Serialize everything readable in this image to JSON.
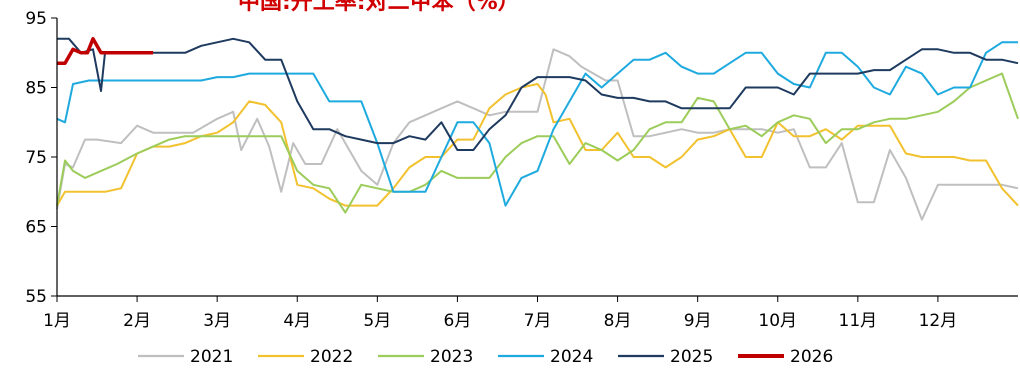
{
  "chart_data": {
    "type": "line",
    "title": "中国:开工率:对二甲苯（%）",
    "ylim": [
      55,
      95
    ],
    "yticks": [
      55,
      65,
      75,
      85,
      95
    ],
    "xlim": [
      0,
      12
    ],
    "xticks": [
      "1月",
      "2月",
      "3月",
      "4月",
      "5月",
      "6月",
      "7月",
      "8月",
      "9月",
      "10月",
      "11月",
      "12月"
    ],
    "legend_position": "bottom",
    "grid": false,
    "series": [
      {
        "name": "2021",
        "color": "#bfbfbf",
        "x": [
          0.0,
          0.1,
          0.2,
          0.35,
          0.5,
          0.8,
          1.0,
          1.2,
          1.35,
          1.5,
          1.7,
          2.0,
          2.2,
          2.3,
          2.5,
          2.65,
          2.8,
          2.95,
          3.1,
          3.3,
          3.5,
          3.7,
          3.8,
          4.0,
          4.2,
          4.4,
          4.6,
          4.8,
          5.0,
          5.2,
          5.4,
          5.6,
          5.8,
          6.0,
          6.2,
          6.4,
          6.55,
          6.7,
          6.85,
          7.0,
          7.2,
          7.4,
          7.6,
          7.8,
          8.0,
          8.2,
          8.4,
          8.6,
          8.8,
          9.0,
          9.2,
          9.4,
          9.6,
          9.8,
          10.0,
          10.2,
          10.4,
          10.6,
          10.8,
          11.0,
          11.2,
          11.4,
          11.6,
          11.8,
          12.0
        ],
        "values": [
          67.5,
          74,
          73.5,
          77.5,
          77.5,
          77,
          79.5,
          78.5,
          78.5,
          78.5,
          78.5,
          80.5,
          81.5,
          76,
          80.5,
          76.5,
          70,
          77,
          74,
          74,
          79,
          75,
          73,
          71,
          77,
          80,
          81,
          82,
          83,
          82,
          81,
          81.5,
          81.5,
          81.5,
          90.5,
          89.5,
          88,
          87,
          86,
          86,
          78,
          78,
          78.5,
          79,
          78.5,
          78.5,
          79,
          79,
          79,
          78.5,
          79,
          73.5,
          73.5,
          77,
          68.5,
          68.5,
          76,
          72,
          66,
          71,
          71,
          71,
          71,
          71,
          70.5
        ]
      },
      {
        "name": "2022",
        "color": "#f2c12e",
        "x": [
          0.0,
          0.1,
          0.2,
          0.4,
          0.6,
          0.8,
          1.0,
          1.2,
          1.4,
          1.6,
          1.8,
          2.0,
          2.2,
          2.4,
          2.6,
          2.8,
          3.0,
          3.2,
          3.4,
          3.6,
          3.8,
          4.0,
          4.2,
          4.4,
          4.6,
          4.8,
          5.0,
          5.2,
          5.4,
          5.6,
          5.8,
          6.0,
          6.1,
          6.2,
          6.4,
          6.6,
          6.8,
          7.0,
          7.2,
          7.4,
          7.6,
          7.8,
          8.0,
          8.2,
          8.4,
          8.6,
          8.8,
          9.0,
          9.2,
          9.4,
          9.6,
          9.8,
          10.0,
          10.2,
          10.4,
          10.6,
          10.8,
          11.0,
          11.2,
          11.4,
          11.6,
          11.8,
          12.0
        ],
        "values": [
          68,
          70,
          70,
          70,
          70,
          70.5,
          75.5,
          76.5,
          76.5,
          77,
          78,
          78.5,
          80,
          83,
          82.5,
          80,
          71,
          70.5,
          69,
          68,
          68,
          68,
          70.5,
          73.5,
          75,
          75,
          77.5,
          77.5,
          82,
          84,
          85,
          85.5,
          84,
          80,
          80.5,
          76,
          76,
          78.5,
          75,
          75,
          73.5,
          75,
          77.5,
          78,
          79,
          75,
          75,
          80,
          78,
          78,
          79,
          77.5,
          79.5,
          79.5,
          79.5,
          75.5,
          75,
          75,
          75,
          74.5,
          74.5,
          70.5,
          68
        ]
      },
      {
        "name": "2023",
        "color": "#9ccc5a",
        "x": [
          0.0,
          0.1,
          0.2,
          0.35,
          0.55,
          0.75,
          1.0,
          1.2,
          1.4,
          1.6,
          1.8,
          2.0,
          2.2,
          2.4,
          2.6,
          2.8,
          3.0,
          3.2,
          3.4,
          3.6,
          3.8,
          4.0,
          4.2,
          4.4,
          4.6,
          4.8,
          5.0,
          5.2,
          5.4,
          5.6,
          5.8,
          6.0,
          6.2,
          6.4,
          6.6,
          6.8,
          7.0,
          7.2,
          7.4,
          7.6,
          7.8,
          8.0,
          8.2,
          8.4,
          8.6,
          8.8,
          9.0,
          9.2,
          9.4,
          9.6,
          9.8,
          10.0,
          10.2,
          10.4,
          10.6,
          10.8,
          11.0,
          11.2,
          11.4,
          11.6,
          11.8,
          12.0
        ],
        "values": [
          68,
          74.5,
          73,
          72,
          73,
          74,
          75.5,
          76.5,
          77.5,
          78,
          78,
          78,
          78,
          78,
          78,
          78,
          73,
          71,
          70.5,
          67,
          71,
          70.5,
          70,
          70,
          71,
          73,
          72,
          72,
          72,
          75,
          77,
          78,
          78,
          74,
          77,
          76,
          74.5,
          76,
          79,
          80,
          80,
          83.5,
          83,
          79,
          79.5,
          78,
          80,
          81,
          80.5,
          77,
          79,
          79,
          80,
          80.5,
          80.5,
          81,
          81.5,
          83,
          85,
          86,
          87,
          80.5
        ]
      },
      {
        "name": "2024",
        "color": "#1eaadf",
        "x": [
          0.0,
          0.1,
          0.2,
          0.4,
          0.6,
          0.8,
          1.0,
          1.2,
          1.4,
          1.6,
          1.8,
          2.0,
          2.2,
          2.4,
          2.6,
          2.8,
          3.0,
          3.2,
          3.4,
          3.6,
          3.8,
          4.0,
          4.2,
          4.4,
          4.6,
          4.8,
          5.0,
          5.2,
          5.4,
          5.6,
          5.8,
          6.0,
          6.2,
          6.4,
          6.6,
          6.8,
          7.0,
          7.2,
          7.4,
          7.6,
          7.8,
          8.0,
          8.2,
          8.4,
          8.6,
          8.8,
          9.0,
          9.2,
          9.4,
          9.6,
          9.8,
          10.0,
          10.2,
          10.4,
          10.6,
          10.8,
          11.0,
          11.2,
          11.4,
          11.6,
          11.8,
          12.0
        ],
        "values": [
          80.5,
          80,
          85.5,
          86,
          86,
          86,
          86,
          86,
          86,
          86,
          86,
          86.5,
          86.5,
          87,
          87,
          87,
          87,
          87,
          83,
          83,
          83,
          77,
          70,
          70,
          70,
          75,
          80,
          80,
          77,
          68,
          72,
          73,
          79,
          83,
          87,
          85,
          87,
          89,
          89,
          90,
          88,
          87,
          87,
          88.5,
          90,
          90,
          87,
          85.5,
          85,
          90,
          90,
          88,
          85,
          84,
          88,
          87,
          84,
          85,
          85,
          90,
          91.5,
          91.5
        ]
      },
      {
        "name": "2025",
        "color": "#1f3a5f",
        "x": [
          0.0,
          0.15,
          0.3,
          0.45,
          0.55,
          0.6,
          0.7,
          0.85,
          1.0,
          1.2,
          1.4,
          1.6,
          1.8,
          2.0,
          2.2,
          2.4,
          2.6,
          2.8,
          3.0,
          3.2,
          3.4,
          3.6,
          3.8,
          4.0,
          4.2,
          4.4,
          4.6,
          4.8,
          5.0,
          5.2,
          5.4,
          5.6,
          5.8,
          6.0,
          6.2,
          6.4,
          6.6,
          6.8,
          7.0,
          7.2,
          7.4,
          7.6,
          7.8,
          8.0,
          8.2,
          8.4,
          8.6,
          8.8,
          9.0,
          9.2,
          9.4,
          9.6,
          9.8,
          10.0,
          10.2,
          10.4,
          10.6,
          10.8,
          11.0,
          11.2,
          11.4,
          11.6,
          11.8,
          12.0
        ],
        "values": [
          92,
          92,
          90,
          90.5,
          84.5,
          90,
          90,
          90,
          90,
          90,
          90,
          90,
          91,
          91.5,
          92,
          91.5,
          89,
          89,
          83,
          79,
          79,
          78,
          77.5,
          77,
          77,
          78,
          77.5,
          80,
          76,
          76,
          79,
          81,
          85,
          86.5,
          86.5,
          86.5,
          86,
          84,
          83.5,
          83.5,
          83,
          83,
          82,
          82,
          82,
          82,
          85,
          85,
          85,
          84,
          87,
          87,
          87,
          87,
          87.5,
          87.5,
          89,
          90.5,
          90.5,
          90,
          90,
          89,
          89,
          88.5
        ]
      },
      {
        "name": "2026",
        "color": "#c00000",
        "x": [
          0.0,
          0.1,
          0.2,
          0.3,
          0.38,
          0.45,
          0.55,
          0.7,
          0.85,
          1.0,
          1.2
        ],
        "values": [
          88.5,
          88.5,
          90.5,
          90,
          90,
          92,
          90,
          90,
          90,
          90,
          90
        ]
      }
    ]
  }
}
